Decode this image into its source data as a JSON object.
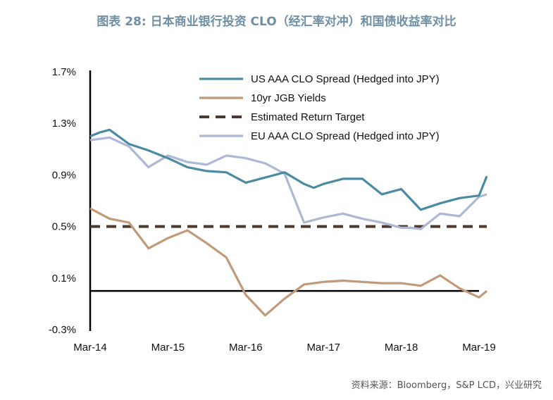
{
  "title": "图表 28: 日本商业银行投资 CLO（经汇率对冲）和国债收益率对比",
  "source": "资料来源：Bloomberg，S&P LCD，兴业研究",
  "chart_data": {
    "type": "line",
    "ylim": [
      -0.3,
      1.7
    ],
    "yticks": [
      "1.7%",
      "1.3%",
      "0.9%",
      "0.5%",
      "0.1%",
      "-0.3%"
    ],
    "ytick_values": [
      1.7,
      1.3,
      0.9,
      0.5,
      0.1,
      -0.3
    ],
    "xticks": [
      "Mar-14",
      "Mar-15",
      "Mar-16",
      "Mar-17",
      "Mar-18",
      "Mar-19"
    ],
    "xtick_index": [
      0,
      4,
      8,
      12,
      16,
      20
    ],
    "x_count": 21,
    "zero_line": 0,
    "legend_position": "top-right",
    "series": [
      {
        "name": "US AAA CLO Spread (Hedged into JPY)",
        "color": "#4a8aa3",
        "style": "solid",
        "x": [
          0,
          0.5,
          1,
          2,
          3,
          4,
          5,
          6,
          7,
          8,
          9,
          10,
          11,
          11.5,
          12,
          13,
          14,
          15,
          15.5,
          16,
          17,
          18,
          19,
          20,
          20.4
        ],
        "values": [
          1.2,
          1.23,
          1.25,
          1.14,
          1.09,
          1.03,
          0.96,
          0.93,
          0.92,
          0.84,
          0.88,
          0.92,
          0.83,
          0.8,
          0.83,
          0.87,
          0.87,
          0.75,
          0.77,
          0.79,
          0.63,
          0.68,
          0.72,
          0.74,
          0.89
        ]
      },
      {
        "name": "10yr JGB Yields",
        "color": "#c19a79",
        "style": "solid",
        "x": [
          0,
          1,
          2,
          3,
          4,
          5,
          6,
          7,
          8,
          9,
          10,
          11,
          12,
          13,
          14,
          15,
          16,
          16.5,
          17,
          18,
          19,
          20,
          20.4
        ],
        "values": [
          0.64,
          0.56,
          0.53,
          0.33,
          0.41,
          0.47,
          0.37,
          0.26,
          -0.03,
          -0.19,
          -0.06,
          0.05,
          0.07,
          0.08,
          0.07,
          0.06,
          0.06,
          0.05,
          0.04,
          0.12,
          0.02,
          -0.05,
          0.0
        ],
        "_note": ""
      },
      {
        "name": "Estimated Return Target",
        "color": "#4a3a30",
        "style": "dashed",
        "x": [
          0,
          20.4
        ],
        "values": [
          0.5,
          0.5
        ]
      },
      {
        "name": "EU AAA CLO Spread (Hedged into JPY)",
        "color": "#aeb7d3",
        "style": "solid",
        "x": [
          0,
          1,
          2,
          3,
          4,
          5,
          6,
          7,
          8,
          9,
          10,
          11,
          12,
          13,
          14,
          15,
          16,
          16.5,
          17,
          18,
          19,
          20,
          20.4
        ],
        "values": [
          1.17,
          1.19,
          1.12,
          0.96,
          1.05,
          1.0,
          0.98,
          1.05,
          1.03,
          0.99,
          0.91,
          0.53,
          0.57,
          0.6,
          0.56,
          0.53,
          0.49,
          0.49,
          0.48,
          0.6,
          0.58,
          0.73,
          0.75
        ]
      }
    ]
  }
}
